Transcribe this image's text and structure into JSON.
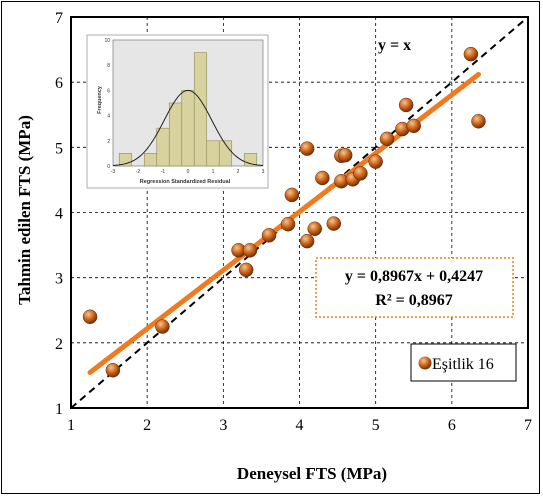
{
  "colors": {
    "fit_line": "#F07A1F",
    "points": "#C9621A",
    "identity_line": "#000000",
    "eq_box_border": "#E0802C",
    "inset_bg": "#E6E6E6",
    "inset_bar": "#D8D29E",
    "inset_bar_edge": "#8E8A5C"
  },
  "chart_data": [
    {
      "type": "scatter",
      "xlabel": "Deneysel FTS (MPa)",
      "ylabel": "Tahmin edilen FTS (MPa)",
      "xlim": [
        1,
        7
      ],
      "ylim": [
        1,
        7
      ],
      "xticks": [
        "1",
        "2",
        "3",
        "4",
        "5",
        "6",
        "7"
      ],
      "yticks": [
        "1",
        "2",
        "3",
        "4",
        "5",
        "6",
        "7"
      ],
      "grid": true,
      "legend_position": "bottom-right",
      "series": [
        {
          "name": "Eşitlik 16",
          "points": [
            [
              1.25,
              2.4
            ],
            [
              1.55,
              1.58
            ],
            [
              2.2,
              2.25
            ],
            [
              3.2,
              3.42
            ],
            [
              3.3,
              3.12
            ],
            [
              3.35,
              3.42
            ],
            [
              3.6,
              3.65
            ],
            [
              3.85,
              3.82
            ],
            [
              3.9,
              4.27
            ],
            [
              4.1,
              4.98
            ],
            [
              4.1,
              3.56
            ],
            [
              4.2,
              3.75
            ],
            [
              4.3,
              4.53
            ],
            [
              4.45,
              3.83
            ],
            [
              4.55,
              4.48
            ],
            [
              4.55,
              4.87
            ],
            [
              4.6,
              4.88
            ],
            [
              4.7,
              4.51
            ],
            [
              4.8,
              4.6
            ],
            [
              5.0,
              4.78
            ],
            [
              5.15,
              5.13
            ],
            [
              5.35,
              5.28
            ],
            [
              5.4,
              5.65
            ],
            [
              5.5,
              5.33
            ],
            [
              6.25,
              6.43
            ],
            [
              6.35,
              5.4
            ]
          ]
        }
      ],
      "fit_line": {
        "slope": 0.8967,
        "intercept": 0.4247,
        "x_range": [
          1.25,
          6.35
        ]
      },
      "identity_line_label": "y = x",
      "equation_text": "y = 0,8967x + 0,4247",
      "r2_text": "R² = 0,8967"
    },
    {
      "type": "bar",
      "title": "",
      "xlabel": "Regression Standardized Residual",
      "ylabel": "Frequency",
      "xlim": [
        -3,
        3
      ],
      "ylim": [
        0,
        10
      ],
      "xticks": [
        "-3",
        "-2",
        "-1",
        "0",
        "1",
        "2",
        "3"
      ],
      "yticks": [
        "0",
        "2",
        "4",
        "6",
        "8",
        "10"
      ],
      "bins": [
        -2.5,
        -1.5,
        -1.0,
        -0.5,
        0.0,
        0.5,
        1.0,
        1.5,
        2.5
      ],
      "bin_width": 0.5,
      "values": [
        1,
        1,
        3,
        5,
        6,
        9,
        2,
        2,
        1
      ]
    }
  ]
}
